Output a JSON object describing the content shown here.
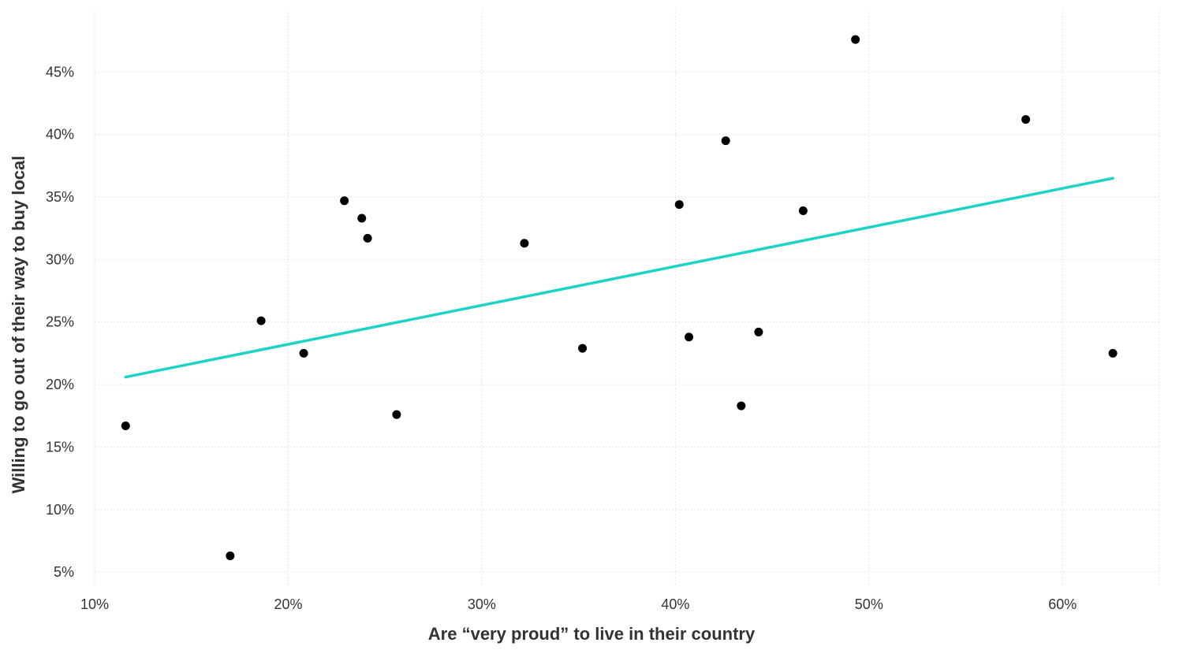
{
  "chart_data": {
    "type": "scatter",
    "title": "",
    "xlabel": "Are “very proud” to live in their country",
    "ylabel": "Willing to go out of their way to buy local",
    "xlim": [
      10,
      65
    ],
    "ylim": [
      4,
      50
    ],
    "x_ticks": [
      10,
      20,
      30,
      40,
      50,
      60
    ],
    "x_tick_labels": [
      "10%",
      "20%",
      "30%",
      "40%",
      "50%",
      "60%"
    ],
    "y_ticks": [
      5,
      10,
      15,
      20,
      25,
      30,
      35,
      40,
      45
    ],
    "y_tick_labels": [
      "5%",
      "10%",
      "15%",
      "20%",
      "25%",
      "30%",
      "35%",
      "40%",
      "45%"
    ],
    "grid": true,
    "legend": "none",
    "point_color": "#000000",
    "trend_color": "#1dd3c6",
    "points": [
      {
        "x": 11.6,
        "y": 16.7
      },
      {
        "x": 17.0,
        "y": 6.3
      },
      {
        "x": 18.6,
        "y": 25.1
      },
      {
        "x": 20.8,
        "y": 22.5
      },
      {
        "x": 22.9,
        "y": 34.7
      },
      {
        "x": 23.8,
        "y": 33.3
      },
      {
        "x": 24.1,
        "y": 31.7
      },
      {
        "x": 25.6,
        "y": 17.6
      },
      {
        "x": 32.2,
        "y": 31.3
      },
      {
        "x": 35.2,
        "y": 22.9
      },
      {
        "x": 40.2,
        "y": 34.4
      },
      {
        "x": 40.7,
        "y": 23.8
      },
      {
        "x": 42.6,
        "y": 39.5
      },
      {
        "x": 43.4,
        "y": 18.3
      },
      {
        "x": 44.3,
        "y": 24.2
      },
      {
        "x": 46.6,
        "y": 33.9
      },
      {
        "x": 49.3,
        "y": 47.6
      },
      {
        "x": 58.1,
        "y": 41.2
      },
      {
        "x": 62.6,
        "y": 22.5
      }
    ],
    "trendline": {
      "x": [
        11.6,
        62.6
      ],
      "y": [
        20.6,
        36.5
      ]
    }
  }
}
